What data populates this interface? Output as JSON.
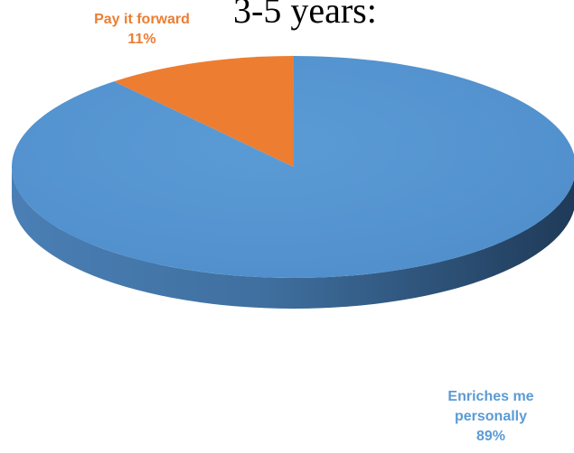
{
  "title_fragment": "3-5 years:",
  "chart_data": {
    "type": "pie",
    "title": "3-5 years:",
    "slices": [
      {
        "label": "Enriches me personally",
        "label_lines": [
          "Enriches me",
          "personally"
        ],
        "value": 89,
        "value_text": "89%",
        "color": "#5B9BD5"
      },
      {
        "label": "Pay it forward",
        "label_lines": [
          "Pay it forward"
        ],
        "value": 11,
        "value_text": "11%",
        "color": "#ED7D31"
      }
    ],
    "style": "3d",
    "legend": "none"
  }
}
